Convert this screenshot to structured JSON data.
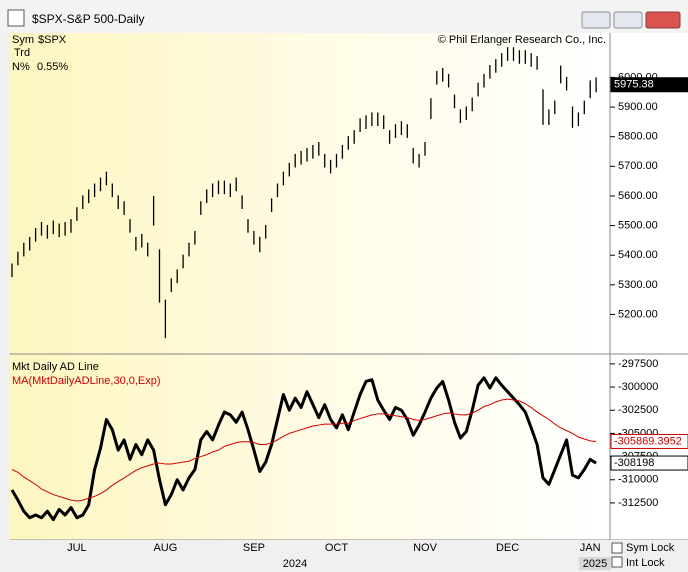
{
  "window": {
    "title": "$SPX-S&P 500-Daily"
  },
  "info": {
    "sym_label": "Sym",
    "sym": "$SPX",
    "trd": "Trd",
    "n_label": "N%",
    "n_value": "0.55%"
  },
  "controls": {
    "sym_lock": "Sym Lock",
    "int_lock": "Int Lock"
  },
  "chart_data": [
    {
      "type": "ohlc",
      "copyright": "© Phil Erlanger Research Co., Inc.",
      "color": "#000000",
      "high": [
        5372,
        5412,
        5442,
        5462,
        5492,
        5512,
        5502,
        5517,
        5507,
        5512,
        5522,
        5562,
        5602,
        5622,
        5642,
        5662,
        5682,
        5642,
        5602,
        5582,
        5522,
        5462,
        5472,
        5442,
        5600,
        5420,
        5250,
        5322,
        5352,
        5402,
        5442,
        5482,
        5582,
        5622,
        5642,
        5652,
        5652,
        5642,
        5662,
        5602,
        5522,
        5482,
        5462,
        5502,
        5592,
        5642,
        5682,
        5712,
        5742,
        5752,
        5762,
        5772,
        5782,
        5742,
        5722,
        5742,
        5772,
        5802,
        5822,
        5862,
        5872,
        5882,
        5882,
        5872,
        5822,
        5842,
        5852,
        5842,
        5762,
        5742,
        5782,
        5930,
        6022,
        6032,
        6012,
        5942,
        5892,
        5902,
        5932,
        5982,
        6012,
        6042,
        6062,
        6082,
        6102,
        6102,
        6092,
        6092,
        6082,
        6072,
        5960,
        5892,
        5922,
        6040,
        6002,
        5902,
        5882,
        5922,
        5990,
        6000
      ],
      "low": [
        5326,
        5366,
        5396,
        5416,
        5446,
        5466,
        5456,
        5471,
        5461,
        5466,
        5476,
        5516,
        5556,
        5576,
        5596,
        5616,
        5636,
        5596,
        5556,
        5536,
        5476,
        5416,
        5426,
        5396,
        5500,
        5240,
        5120,
        5276,
        5306,
        5356,
        5396,
        5436,
        5536,
        5576,
        5596,
        5606,
        5606,
        5596,
        5616,
        5556,
        5476,
        5436,
        5410,
        5456,
        5546,
        5596,
        5636,
        5666,
        5696,
        5706,
        5716,
        5726,
        5736,
        5696,
        5676,
        5696,
        5726,
        5756,
        5776,
        5816,
        5826,
        5836,
        5836,
        5826,
        5776,
        5796,
        5806,
        5796,
        5710,
        5696,
        5736,
        5860,
        5976,
        5986,
        5966,
        5896,
        5846,
        5856,
        5886,
        5936,
        5966,
        5996,
        6016,
        6036,
        6056,
        6056,
        6046,
        6046,
        6036,
        6026,
        5840,
        5840,
        5876,
        5980,
        5956,
        5830,
        5836,
        5876,
        5930,
        5950
      ],
      "last_value": 5975.38,
      "ylim": [
        5070,
        6150
      ],
      "yticks": [
        {
          "value": 5200,
          "label": "5200.00"
        },
        {
          "value": 5300,
          "label": "5300.00"
        },
        {
          "value": 5400,
          "label": "5400.00"
        },
        {
          "value": 5500,
          "label": "5500.00"
        },
        {
          "value": 5600,
          "label": "5600.00"
        },
        {
          "value": 5700,
          "label": "5700.00"
        },
        {
          "value": 5800,
          "label": "5800.00"
        },
        {
          "value": 5900,
          "label": "5900.00"
        },
        {
          "value": 6000,
          "label": "6000.00"
        }
      ]
    },
    {
      "type": "line",
      "categories": [
        null,
        null,
        null,
        null,
        null,
        null,
        null,
        null,
        null,
        null,
        null,
        "JUL",
        null,
        null,
        null,
        null,
        null,
        null,
        null,
        null,
        null,
        null,
        null,
        null,
        null,
        null,
        "AUG",
        null,
        null,
        null,
        null,
        null,
        null,
        null,
        null,
        null,
        null,
        null,
        null,
        null,
        null,
        "SEP",
        null,
        null,
        null,
        null,
        null,
        null,
        null,
        null,
        null,
        null,
        null,
        null,
        null,
        "OCT",
        null,
        null,
        null,
        null,
        null,
        null,
        null,
        null,
        null,
        null,
        null,
        null,
        null,
        null,
        "NOV",
        null,
        null,
        null,
        null,
        null,
        null,
        null,
        null,
        null,
        null,
        null,
        null,
        null,
        "DEC",
        null,
        null,
        null,
        null,
        null,
        null,
        null,
        null,
        null,
        null,
        null,
        null,
        null,
        "JAN",
        null
      ],
      "years": [
        "2024",
        "2025"
      ],
      "series": [
        {
          "name": "Mkt Daily AD Line",
          "color": "#000000",
          "values": [
            -311100,
            -312200,
            -313400,
            -314100,
            -313800,
            -314100,
            -313400,
            -314300,
            -313200,
            -313800,
            -313000,
            -314100,
            -313800,
            -312700,
            -308900,
            -306600,
            -303500,
            -304600,
            -306800,
            -305700,
            -307800,
            -306200,
            -307300,
            -305700,
            -306800,
            -310000,
            -312700,
            -311600,
            -310000,
            -311100,
            -309800,
            -308900,
            -305700,
            -304800,
            -305700,
            -304100,
            -302700,
            -303000,
            -303800,
            -302700,
            -304600,
            -306800,
            -309100,
            -308100,
            -306200,
            -303500,
            -300800,
            -302500,
            -301200,
            -302200,
            -300500,
            -301900,
            -303300,
            -301900,
            -303500,
            -304400,
            -303000,
            -304600,
            -302700,
            -300800,
            -299400,
            -299200,
            -301400,
            -302500,
            -303500,
            -302200,
            -302500,
            -303500,
            -305200,
            -304100,
            -302700,
            -301200,
            -300100,
            -299400,
            -301400,
            -303800,
            -305500,
            -304800,
            -302500,
            -299800,
            -299000,
            -300100,
            -299000,
            -299800,
            -300500,
            -301200,
            -301900,
            -302700,
            -304400,
            -306200,
            -309800,
            -310500,
            -308900,
            -307300,
            -305700,
            -309500,
            -309800,
            -308900,
            -307800,
            -308198
          ]
        },
        {
          "name": "MA(MktDailyADLine,30,0,Exp)",
          "color": "#cc0000",
          "values": [
            -308900,
            -309200,
            -309700,
            -310100,
            -310500,
            -311000,
            -311300,
            -311600,
            -311800,
            -312000,
            -312200,
            -312300,
            -312200,
            -312000,
            -311800,
            -311500,
            -311100,
            -310600,
            -310200,
            -309800,
            -309400,
            -309000,
            -308700,
            -308500,
            -308300,
            -308200,
            -308300,
            -308300,
            -308200,
            -308100,
            -308000,
            -307700,
            -307500,
            -307300,
            -307000,
            -306800,
            -306400,
            -306200,
            -306000,
            -305900,
            -305900,
            -306000,
            -306200,
            -306200,
            -306000,
            -305700,
            -305300,
            -305000,
            -304800,
            -304600,
            -304400,
            -304200,
            -304100,
            -304000,
            -304000,
            -304000,
            -303900,
            -303900,
            -303600,
            -303400,
            -303200,
            -303000,
            -302900,
            -302900,
            -303000,
            -303100,
            -303200,
            -303300,
            -303500,
            -303600,
            -303500,
            -303300,
            -303100,
            -302900,
            -302800,
            -302900,
            -303000,
            -303000,
            -302800,
            -302500,
            -302100,
            -301900,
            -301600,
            -301400,
            -301300,
            -301400,
            -301500,
            -301800,
            -302200,
            -302700,
            -303100,
            -303500,
            -304000,
            -304400,
            -304700,
            -305000,
            -305400,
            -305600,
            -305800,
            -305869.3952
          ]
        }
      ],
      "ylim": [
        -316500,
        -296650
      ],
      "yticks": [
        -297500,
        -300000,
        -302500,
        -305000,
        -307500,
        -310000,
        -312500
      ]
    }
  ]
}
